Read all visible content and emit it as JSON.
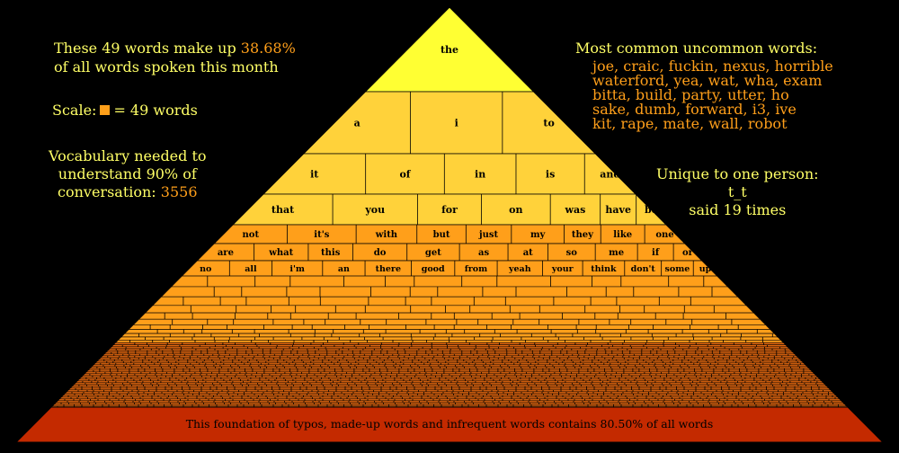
{
  "stats": {
    "line1": "These 49 words make up",
    "percent": "38.68%",
    "line2": "of all words spoken this month"
  },
  "scale": {
    "label": "Scale:",
    "equals": "= 49 words"
  },
  "vocab": {
    "line1": "Vocabulary needed to",
    "line2": "understand 90% of",
    "line3": "conversation:",
    "value": "3556"
  },
  "common": {
    "title": "Most common uncommon words:",
    "lines": [
      "joe, craic, fuckin, nexus, horrible",
      "waterford, yea, wat, wha, exam",
      "bitta, build, party, utter, ho",
      "sake, dumb, forward, i3, ive",
      "kit, rape, mate, wall, robot"
    ]
  },
  "unique": {
    "title": "Unique to one person:",
    "word": "t_t",
    "said": "said 19 times"
  },
  "foundation": {
    "text": "This foundation of typos, made-up words and infrequent words contains 80.50% of all words"
  },
  "pyramid_rows": [
    [
      "the"
    ],
    [
      "a",
      "i",
      "to"
    ],
    [
      "it",
      "of",
      "in",
      "is",
      "and"
    ],
    [
      "that",
      "you",
      "for",
      "on",
      "was",
      "have",
      "be"
    ],
    [
      "not",
      "it's",
      "with",
      "but",
      "just",
      "my",
      "they",
      "like",
      "one"
    ],
    [
      "are",
      "what",
      "this",
      "do",
      "get",
      "as",
      "at",
      "so",
      "me",
      "if",
      "or"
    ],
    [
      "no",
      "all",
      "i'm",
      "an",
      "there",
      "good",
      "from",
      "yeah",
      "your",
      "think",
      "don't",
      "some",
      "up"
    ]
  ],
  "colors": {
    "background": "#000000",
    "apex": "#ffff33",
    "top_fill": "#ffd23a",
    "middle_fill": "#ff9f1a",
    "base_fill": "#e86a10",
    "foundation": "#c42a00",
    "label_yellow": "#ffff66",
    "label_orange": "#ff9f1a"
  }
}
